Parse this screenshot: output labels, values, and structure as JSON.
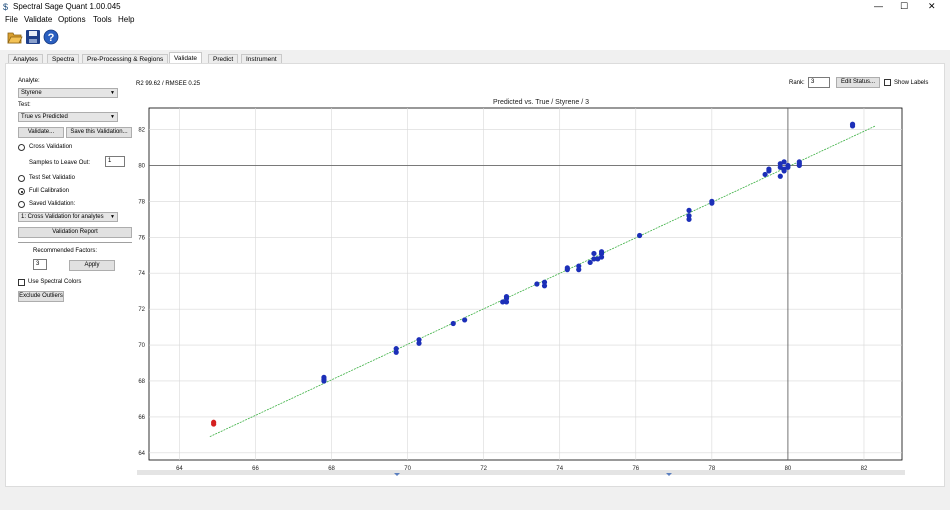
{
  "window": {
    "title": "Spectral Sage Quant 1.00.045",
    "minimize": "—",
    "maximize": "☐",
    "close": "✕"
  },
  "menu": [
    "File",
    "Validate",
    "Options",
    "Tools",
    "Help"
  ],
  "toolbar": {
    "icons": [
      "folder-open-icon",
      "save-icon",
      "help-icon"
    ]
  },
  "tabs": [
    {
      "label": "Analytes",
      "active": false
    },
    {
      "label": "Spectra",
      "active": false
    },
    {
      "label": "Pre-Processing & Regions",
      "active": false
    },
    {
      "label": "Validate",
      "active": true
    },
    {
      "label": "Predict",
      "active": false
    },
    {
      "label": "Instrument",
      "active": false
    }
  ],
  "left": {
    "analyte_label": "Analyte:",
    "analyte_value": "Styrene",
    "test_label": "Test:",
    "test_value": "True vs Predicted",
    "validate_button": "Validate...",
    "save_validation_button": "Save this Validation...",
    "cross_validation": "Cross Validation",
    "samples_leave_out_label": "Samples to Leave Out:",
    "samples_leave_out_value": "1",
    "test_set_validation": "Test Set Validatio",
    "full_calibration": "Full Calibration",
    "saved_validation": "Saved Validation:",
    "saved_validation_value": "1: Cross Validation for analytes",
    "validation_report_button": "Validation Report",
    "recommended_factors_label": "Recommended Factors:",
    "recommended_factors_value": "3",
    "apply_button": "Apply",
    "use_spectral_colors": "Use Spectral Colors",
    "exclude_outliers_button": "Exclude Outliers"
  },
  "stats": {
    "text": "R2 99.62 / RMSEE 0.25"
  },
  "controls": {
    "rank_label": "Rank:",
    "rank_value": "3",
    "edit_status_button": "Edit Status...",
    "show_labels": "Show Labels"
  },
  "chart_data": {
    "type": "scatter",
    "title": "Predicted vs. True / Styrene / 3",
    "xlabel": "",
    "ylabel": "",
    "xlim": [
      63.2,
      83.0
    ],
    "ylim": [
      63.6,
      83.2
    ],
    "xticks": [
      64,
      66,
      68,
      70,
      72,
      74,
      76,
      78,
      80,
      82
    ],
    "yticks": [
      64,
      66,
      68,
      70,
      72,
      74,
      76,
      78,
      80,
      82
    ],
    "grid": true,
    "crosshair": {
      "x": 80,
      "y": 80
    },
    "fit_line": {
      "x": [
        64.8,
        82.3
      ],
      "y": [
        64.9,
        82.2
      ],
      "color": "#3cb043"
    },
    "series": [
      {
        "color": "#1c2fb8",
        "points": [
          [
            67.8,
            68.2
          ],
          [
            67.8,
            68.1
          ],
          [
            67.8,
            68.0
          ],
          [
            69.7,
            69.8
          ],
          [
            69.7,
            69.6
          ],
          [
            70.3,
            70.3
          ],
          [
            70.3,
            70.1
          ],
          [
            71.2,
            71.2
          ],
          [
            71.5,
            71.4
          ],
          [
            72.5,
            72.4
          ],
          [
            72.6,
            72.6
          ],
          [
            72.6,
            72.7
          ],
          [
            72.6,
            72.4
          ],
          [
            73.4,
            73.4
          ],
          [
            73.6,
            73.5
          ],
          [
            73.6,
            73.3
          ],
          [
            74.2,
            74.2
          ],
          [
            74.2,
            74.3
          ],
          [
            74.5,
            74.4
          ],
          [
            74.5,
            74.2
          ],
          [
            74.8,
            74.6
          ],
          [
            74.9,
            74.8
          ],
          [
            74.9,
            75.1
          ],
          [
            75.0,
            74.8
          ],
          [
            75.1,
            75.1
          ],
          [
            75.1,
            74.9
          ],
          [
            75.1,
            75.2
          ],
          [
            76.1,
            76.1
          ],
          [
            77.4,
            77.2
          ],
          [
            77.4,
            77.5
          ],
          [
            77.4,
            77.0
          ],
          [
            78.0,
            77.9
          ],
          [
            78.0,
            78.0
          ],
          [
            79.4,
            79.5
          ],
          [
            79.5,
            79.7
          ],
          [
            79.5,
            79.8
          ],
          [
            79.8,
            79.9
          ],
          [
            79.8,
            80.1
          ],
          [
            79.9,
            80.2
          ],
          [
            79.9,
            79.7
          ],
          [
            79.8,
            79.4
          ],
          [
            80.0,
            80.0
          ],
          [
            79.9,
            79.8
          ],
          [
            80.0,
            79.9
          ],
          [
            80.3,
            80.0
          ],
          [
            80.3,
            80.1
          ],
          [
            80.3,
            80.2
          ],
          [
            81.7,
            82.2
          ],
          [
            81.7,
            82.3
          ]
        ]
      },
      {
        "color": "#d42020",
        "points": [
          [
            64.9,
            65.7
          ],
          [
            64.9,
            65.6
          ]
        ]
      }
    ]
  }
}
